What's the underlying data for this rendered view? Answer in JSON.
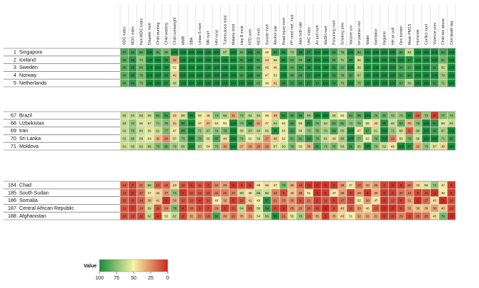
{
  "chart_data": {
    "type": "heatmap",
    "title": "",
    "indicators": [
      "SDG index",
      "MDG index",
      "Non-MDG index",
      "Disaster mort",
      "Child stunting",
      "Child wasting",
      "Child overweight",
      "MMR",
      "SBA",
      "Under-5 mort",
      "NN mort",
      "HIV incid",
      "Tuberculosis incid",
      "Malaria incid",
      "Hep B incid",
      "NTD prev",
      "NCD mort",
      "Suicide mort",
      "Alcohol use",
      "Road injury mort",
      "FP need met, mod",
      "Adol birth rate",
      "UHC index",
      "Air poll mort",
      "WaSH mort",
      "Poisoning mort",
      "Smoking prev",
      "Vaccine cov",
      "Int partner viol",
      "Water",
      "Sanitation",
      "Hygiene",
      "HH air poll",
      "Occ burden",
      "Mean PM2.5",
      "Homicide",
      "Conflict mort",
      "Violence prev",
      "Child sex abuse",
      "Cert death reg"
    ],
    "groups": [
      {
        "rows": [
          {
            "rank": "1",
            "country": "Singapore",
            "values": [
              87,
              91,
              85,
              100,
              85,
              80,
              100,
              100,
              100,
              100,
              100,
              100,
              67,
              100,
              81,
              100,
              92,
              49,
              94,
              96,
              71,
              98,
              97,
              100,
              100,
              92,
              76,
              100,
              82,
              100,
              100,
              100,
              100,
              86,
              62,
              100,
              100,
              100,
              89,
              100
            ]
          },
          {
            "rank": "2",
            "country": "Iceland",
            "values": [
              86,
              96,
              72,
              100,
              100,
              96,
              32,
              100,
              100,
              100,
              100,
              100,
              100,
              100,
              91,
              100,
              91,
              43,
              56,
              98,
              84,
              80,
              98,
              100,
              100,
              86,
              71,
              96,
              58,
              100,
              100,
              100,
              100,
              100,
              97,
              100,
              100,
              100,
              81,
              100
            ]
          },
          {
            "rank": "3",
            "country": "Sweden",
            "values": [
              85,
              95,
              80,
              100,
              100,
              99,
              51,
              100,
              100,
              100,
              100,
              100,
              100,
              100,
              94,
              100,
              88,
              45,
              46,
              100,
              84,
              94,
              98,
              100,
              100,
              95,
              82,
              100,
              60,
              100,
              100,
              100,
              100,
              90,
              87,
              100,
              100,
              92,
              62,
              100
            ]
          },
          {
            "rank": "4",
            "country": "Norway",
            "values": [
              84,
              95,
              79,
              100,
              100,
              96,
              41,
              100,
              100,
              100,
              100,
              100,
              100,
              100,
              90,
              100,
              90,
              47,
              53,
              100,
              85,
              89,
              97,
              100,
              100,
              92,
              79,
              90,
              67,
              100,
              100,
              100,
              100,
              92,
              94,
              100,
              100,
              100,
              70,
              100
            ]
          },
          {
            "rank": "5",
            "country": "Netherlands",
            "values": [
              84,
              94,
              75,
              100,
              100,
              97,
              60,
              100,
              100,
              100,
              100,
              100,
              100,
              100,
              100,
              100,
              83,
              49,
              41,
              96,
              92,
              95,
              97,
              93,
              100,
              94,
              73,
              100,
              75,
              100,
              100,
              100,
              100,
              83,
              66,
              100,
              100,
              92,
              71,
              100
            ]
          }
        ]
      },
      {
        "rows": [
          {
            "rank": "67",
            "country": "Brazil",
            "values": [
              62,
              62,
              62,
              59,
              81,
              91,
              43,
              59,
              99,
              54,
              45,
              74,
              66,
              31,
              73,
              64,
              64,
              48,
              39,
              96,
              86,
              90,
              69,
              100,
              100,
              60,
              52,
              83,
              85,
              100,
              78,
              82,
              72,
              73,
              97,
              15,
              73,
              5,
              77,
              74
            ]
          },
          {
            "rank": "68",
            "country": "Uzbekistan",
            "values": [
              62,
              72,
              56,
              57,
              71,
              76,
              41,
              90,
              100,
              47,
              37,
              53,
              50,
              100,
              75,
              98,
              31,
              47,
              64,
              52,
              89,
              56,
              97,
              78,
              63,
              83,
              81,
              73,
              76,
              55,
              43,
              96,
              60,
              83,
              35,
              75,
              100,
              94,
              56,
              62
            ]
          },
          {
            "rank": "69",
            "country": "Iran",
            "values": [
              62,
              73,
              60,
              55,
              61,
              77,
              47,
              88,
              100,
              71,
              67,
              74,
              79,
              100,
              58,
              67,
              64,
              58,
              98,
              54,
              91,
              58,
              73,
              76,
              70,
              89,
              65,
              100,
              47,
              87,
              61,
              100,
              71,
              60,
              15,
              66,
              100,
              90,
              67,
              100
            ]
          },
          {
            "rank": "70",
            "country": "Sri Lanka",
            "values": [
              62,
              68,
              58,
              54,
              35,
              24,
              57,
              75,
              100,
              79,
              56,
              87,
              44,
              100,
              74,
              52,
              59,
              27,
              40,
              52,
              81,
              81,
              94,
              79,
              61,
              43,
              69,
              100,
              77,
              52,
              79,
              100,
              23,
              55,
              79,
              58,
              100,
              100,
              71,
              92
            ]
          },
          {
            "rank": "71",
            "country": "Moldova",
            "values": [
              61,
              63,
              62,
              65,
              76,
              80,
              70,
              66,
              100,
              63,
              54,
              73,
              30,
              100,
              37,
              29,
              25,
              26,
              57,
              59,
              78,
              55,
              35,
              91,
              74,
              78,
              63,
              91,
              65,
              100,
              74,
              62,
              46,
              100,
              97,
              32,
              73,
              57,
              43,
              100
            ]
          }
        ]
      },
      {
        "rows": [
          {
            "rank": "184",
            "country": "Chad",
            "values": [
              14,
              7,
              21,
              66,
              14,
              16,
              43,
              12,
              6,
              11,
              7,
              24,
              29,
              3,
              8,
              5,
              48,
              45,
              47,
              78,
              35,
              14,
              3,
              2,
              3,
              4,
              28,
              47,
              17,
              33,
              29,
              7,
              3,
              5,
              20,
              43,
              56,
              72,
              47,
              5
            ]
          },
          {
            "rank": "185",
            "country": "South Sudan",
            "values": [
              13,
              5,
              17,
              47,
              42,
              27,
              74,
              4,
              12,
              12,
              12,
              22,
              21,
              23,
              60,
              46,
              65,
              60,
              23,
              9,
              40,
              25,
              51,
              2,
              5,
              47,
              29,
              6,
              29,
              4,
              33,
              5,
              6,
              20,
              21,
              8,
              10,
              3,
              48,
              6
            ]
          },
          {
            "rank": "186",
            "country": "Somalia",
            "values": [
              12,
              8,
              14,
              38,
              41,
              2,
              33,
              12,
              13,
              4,
              11,
              49,
              32,
              5,
              12,
              41,
              49,
              97,
              21,
              23,
              26,
              9,
              21,
              5,
              11,
              6,
              17,
              7,
              52,
              28,
              47,
              5,
              12,
              6,
              31,
              1,
              17,
              45,
              1,
              10
            ]
          },
          {
            "rank": "187",
            "country": "Central African Republic",
            "values": [
              11,
              5,
              19,
              59,
              11,
              24,
              78,
              4,
              18,
              8,
              7,
              26,
              5,
              12,
              64,
              13,
              56,
              94,
              8,
              4,
              25,
              25,
              16,
              10,
              0,
              9,
              40,
              11,
              29,
              46,
              13,
              2,
              3,
              8,
              31,
              38,
              38,
              30,
              40,
              10
            ]
          },
          {
            "rank": "188",
            "country": "Afghanistan",
            "values": [
              10,
              10,
              10,
              62,
              4,
              53,
              62,
              8,
              32,
              22,
              16,
              90,
              30,
              20,
              35,
              31,
              54,
              66,
              98,
              21,
              55,
              70,
              14,
              35,
              5,
              35,
              43,
              51,
              32,
              32,
              31,
              6,
              8,
              23,
              8,
              18,
              20,
              45,
              78,
              0
            ]
          }
        ]
      }
    ],
    "legend": {
      "title": "Value",
      "ticks": [
        100,
        75,
        50,
        25,
        0
      ],
      "colormap": [
        "#1a8a3c",
        "#f9f3a8",
        "#c8281f"
      ],
      "range": [
        100,
        0
      ]
    }
  }
}
